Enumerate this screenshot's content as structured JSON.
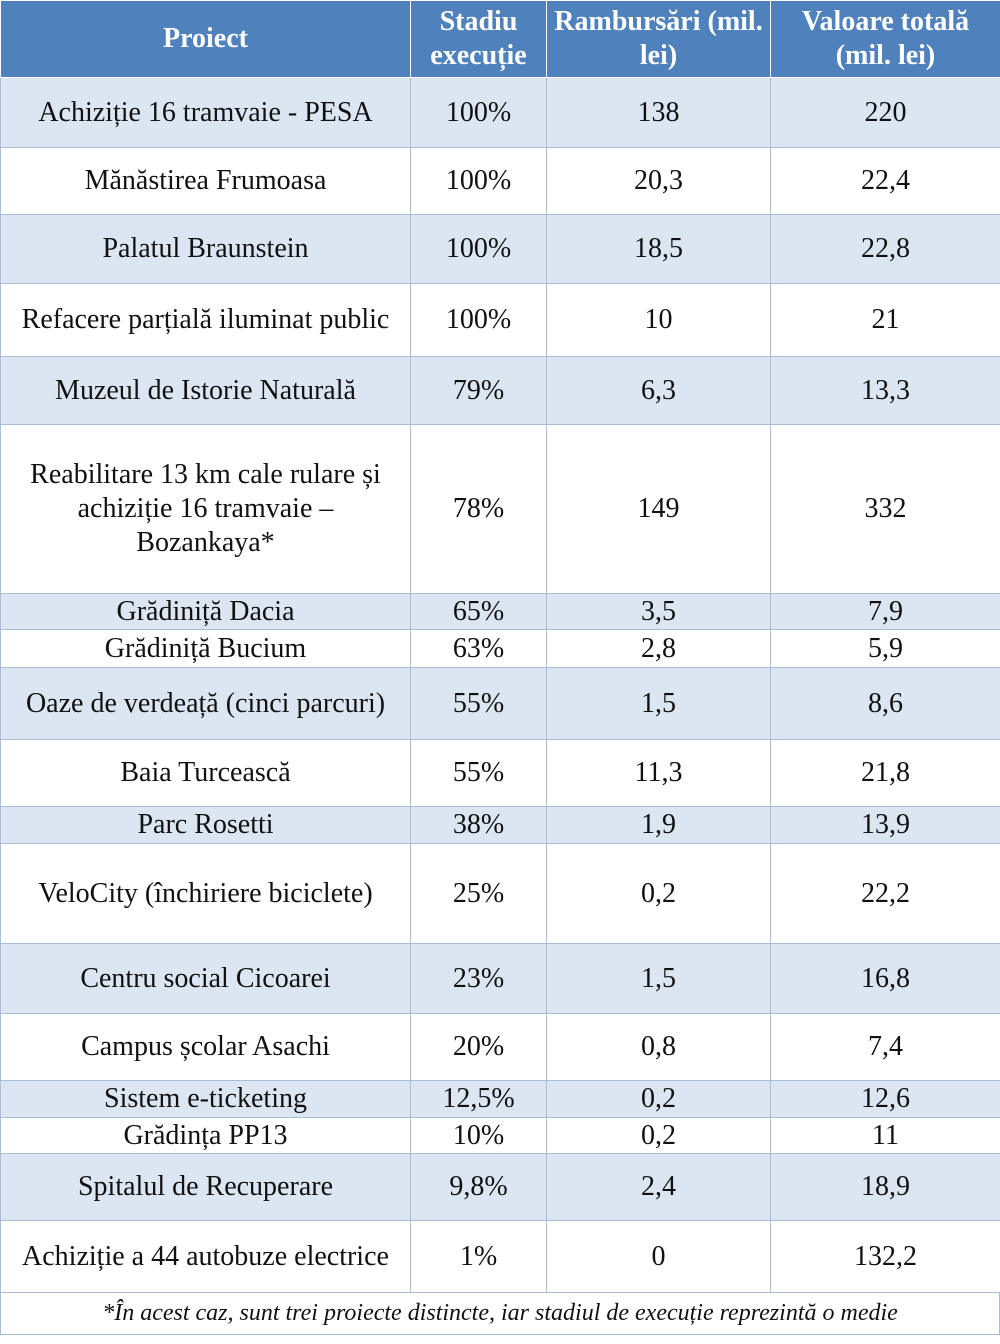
{
  "table": {
    "headers": [
      "Proiect",
      "Stadiu execuție",
      "Rambursări (mil. lei)",
      "Valoare totală (mil. lei)"
    ],
    "rows": [
      [
        "Achiziție 16 tramvaie  - PESA",
        "100%",
        "138",
        "220"
      ],
      [
        "Mănăstirea Frumoasa",
        "100%",
        "20,3",
        "22,4"
      ],
      [
        "Palatul Braunstein",
        "100%",
        "18,5",
        "22,8"
      ],
      [
        "Refacere parțială iluminat public",
        "100%",
        "10",
        "21"
      ],
      [
        "Muzeul de Istorie Naturală",
        "79%",
        "6,3",
        "13,3"
      ],
      [
        "Reabilitare 13 km cale rulare și achiziție 16 tramvaie – Bozankaya*",
        "78%",
        "149",
        "332"
      ],
      [
        "Grădiniță Dacia",
        "65%",
        "3,5",
        "7,9"
      ],
      [
        "Grădiniță Bucium",
        "63%",
        "2,8",
        "5,9"
      ],
      [
        "Oaze de verdeață (cinci parcuri)",
        "55%",
        "1,5",
        "8,6"
      ],
      [
        "Baia Turcească",
        "55%",
        "11,3",
        "21,8"
      ],
      [
        "Parc Rosetti",
        "38%",
        "1,9",
        "13,9"
      ],
      [
        "VeloCity (închiriere biciclete)",
        "25%",
        "0,2",
        "22,2"
      ],
      [
        "Centru social Cicoarei",
        "23%",
        "1,5",
        "16,8"
      ],
      [
        "Campus școlar Asachi",
        "20%",
        "0,8",
        "7,4"
      ],
      [
        "Sistem e-ticketing",
        "12,5%",
        "0,2",
        "12,6"
      ],
      [
        "Grădința PP13",
        "10%",
        "0,2",
        "11"
      ],
      [
        "Spitalul de Recuperare",
        "9,8%",
        "2,4",
        "18,9"
      ],
      [
        "Achiziție a 44 autobuze electrice",
        "1%",
        "0",
        "132,2"
      ]
    ]
  },
  "footnote": "*În acest caz, sunt trei proiecte distincte, iar stadiul de execuție reprezintă o medie",
  "colors": {
    "header_bg": "#4f81bd",
    "band_bg": "#dce6f2",
    "border": "#a9bfd9"
  }
}
